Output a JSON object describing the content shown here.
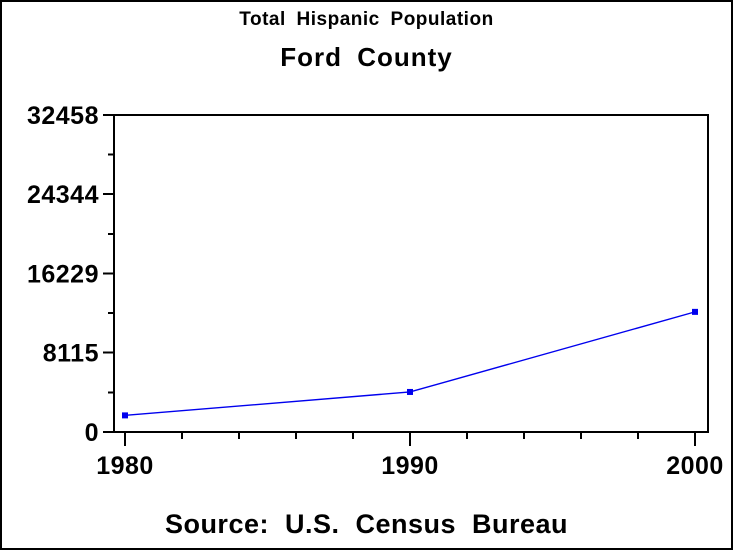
{
  "chart_data": {
    "type": "line",
    "title": "Total Hispanic Population",
    "subtitle": "Ford County",
    "footnote": "Source: U.S. Census Bureau",
    "x": [
      1980,
      1990,
      2000
    ],
    "series": [
      {
        "name": "Total Hispanic Population",
        "values": [
          1700,
          4100,
          12300
        ],
        "color": "#0000ee",
        "marker": "square"
      }
    ],
    "xlabel": "",
    "ylabel": "",
    "xlim": [
      1980,
      2000
    ],
    "ylim": [
      0,
      32458
    ],
    "x_ticks": [
      1980,
      1990,
      2000
    ],
    "x_minor_ticks": [
      1982,
      1984,
      1986,
      1988,
      1992,
      1994,
      1996,
      1998
    ],
    "y_ticks": [
      0,
      8115,
      16229,
      24344,
      32458
    ],
    "y_minor_ticks": [
      4057,
      12172,
      20286,
      28401
    ],
    "grid": false,
    "legend": "none",
    "axis_color": "#000000",
    "background": "#ffffff"
  }
}
